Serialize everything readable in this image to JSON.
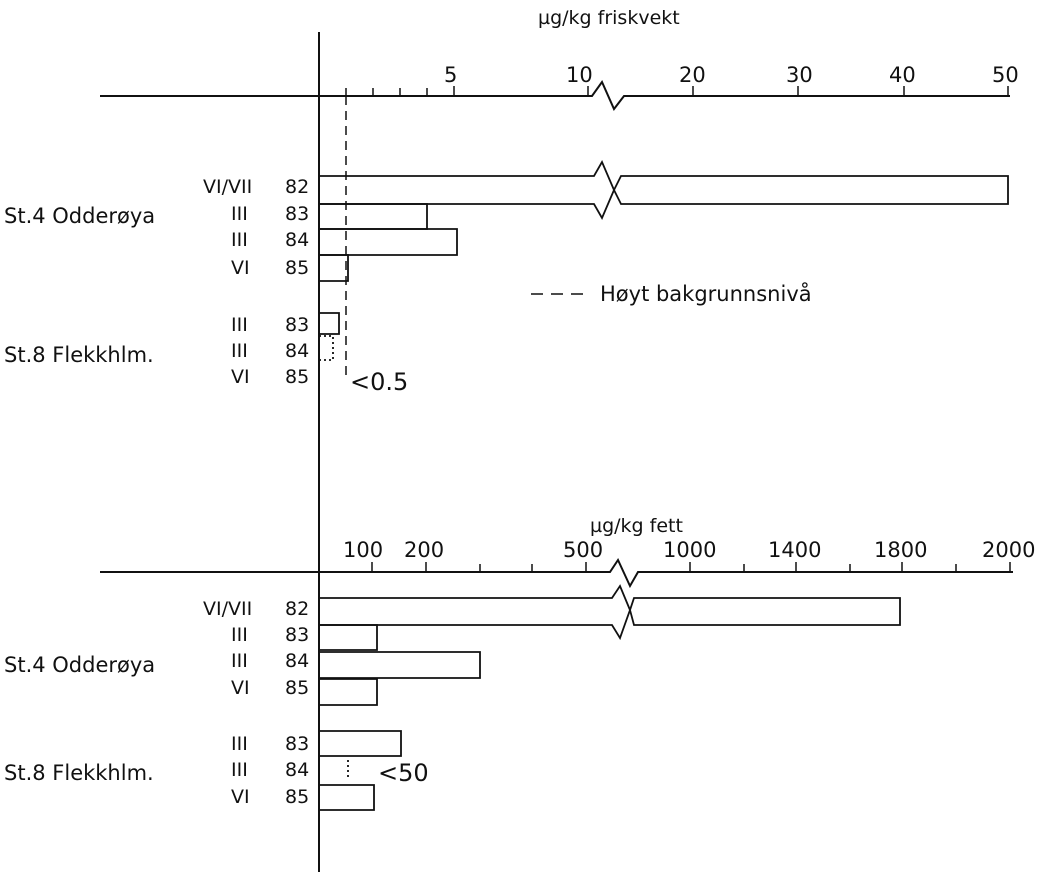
{
  "chart_data": [
    {
      "type": "bar",
      "title": "",
      "xlabel": "µg/kg friskvekt",
      "ylabel": "",
      "tick_labels": [
        "5",
        "10",
        "20",
        "30",
        "40",
        "50"
      ],
      "axis_break": true,
      "xlim": [
        0,
        50
      ],
      "reference_line": {
        "label": "Høyt bakgrunnsnivå",
        "value": 0.5,
        "style": "dashed"
      },
      "groups": [
        {
          "station": "St.4 Odderøya",
          "rows": [
            {
              "class": "VI/VII",
              "year": "82",
              "value": 50,
              "broken": true
            },
            {
              "class": "III",
              "year": "83",
              "value": 3.8,
              "broken": true
            },
            {
              "class": "III",
              "year": "84",
              "value": 5
            },
            {
              "class": "VI",
              "year": "85",
              "value": 0.5
            }
          ]
        },
        {
          "station": "St.8 Flekkhlm.",
          "rows": [
            {
              "class": "III",
              "year": "83",
              "value": 0.3
            },
            {
              "class": "III",
              "year": "84",
              "value": 0.2,
              "below_detection": true
            },
            {
              "class": "VI",
              "year": "85",
              "value": null,
              "below_detection": true
            }
          ]
        }
      ],
      "annotation": "<0.5"
    },
    {
      "type": "bar",
      "title": "",
      "xlabel": "µg/kg fett",
      "ylabel": "",
      "tick_labels": [
        "100",
        "200",
        "500",
        "1000",
        "1400",
        "1800",
        "2000"
      ],
      "axis_break": true,
      "xlim": [
        0,
        2000
      ],
      "groups": [
        {
          "station": "St.4 Odderøya",
          "rows": [
            {
              "class": "VI/VII",
              "year": "82",
              "value": 1800,
              "broken": true
            },
            {
              "class": "III",
              "year": "83",
              "value": 100
            },
            {
              "class": "III",
              "year": "84",
              "value": 300
            },
            {
              "class": "VI",
              "year": "85",
              "value": 100
            }
          ]
        },
        {
          "station": "St.8 Flekkhlm.",
          "rows": [
            {
              "class": "III",
              "year": "83",
              "value": 150
            },
            {
              "class": "III",
              "year": "84",
              "value": null,
              "below_detection": true
            },
            {
              "class": "VI",
              "year": "85",
              "value": 100
            }
          ]
        }
      ],
      "annotation": "<50"
    }
  ]
}
